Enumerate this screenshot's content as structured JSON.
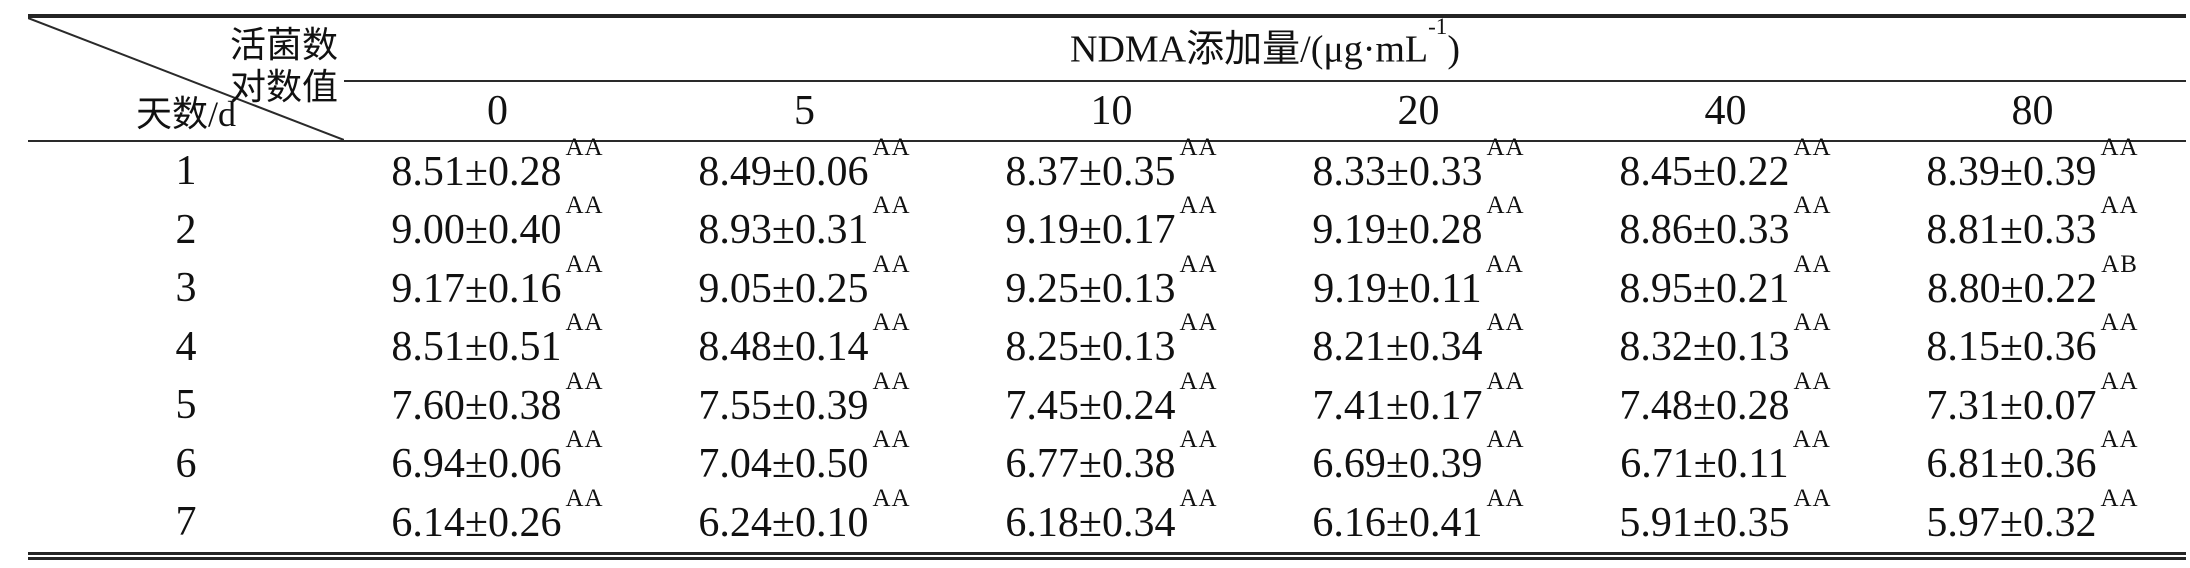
{
  "table": {
    "corner": {
      "top_line1": "活菌数",
      "top_line2": "对数值",
      "bottom_label": "天数/d"
    },
    "group_header": {
      "prefix": "NDMA添加量/(μg·mL",
      "sup": "-1",
      "suffix": ")"
    },
    "columns": [
      "0",
      "5",
      "10",
      "20",
      "40",
      "80"
    ],
    "rows": [
      {
        "day": "1",
        "cells": [
          {
            "value": "8.51±0.28",
            "sup": "AA"
          },
          {
            "value": "8.49±0.06",
            "sup": "AA"
          },
          {
            "value": "8.37±0.35",
            "sup": "AA"
          },
          {
            "value": "8.33±0.33",
            "sup": "AA"
          },
          {
            "value": "8.45±0.22",
            "sup": "AA"
          },
          {
            "value": "8.39±0.39",
            "sup": "AA"
          }
        ]
      },
      {
        "day": "2",
        "cells": [
          {
            "value": "9.00±0.40",
            "sup": "AA"
          },
          {
            "value": "8.93±0.31",
            "sup": "AA"
          },
          {
            "value": "9.19±0.17",
            "sup": "AA"
          },
          {
            "value": "9.19±0.28",
            "sup": "AA"
          },
          {
            "value": "8.86±0.33",
            "sup": "AA"
          },
          {
            "value": "8.81±0.33",
            "sup": "AA"
          }
        ]
      },
      {
        "day": "3",
        "cells": [
          {
            "value": "9.17±0.16",
            "sup": "AA"
          },
          {
            "value": "9.05±0.25",
            "sup": "AA"
          },
          {
            "value": "9.25±0.13",
            "sup": "AA"
          },
          {
            "value": "9.19±0.11",
            "sup": "AA"
          },
          {
            "value": "8.95±0.21",
            "sup": "AA"
          },
          {
            "value": "8.80±0.22",
            "sup": "AB"
          }
        ]
      },
      {
        "day": "4",
        "cells": [
          {
            "value": "8.51±0.51",
            "sup": "AA"
          },
          {
            "value": "8.48±0.14",
            "sup": "AA"
          },
          {
            "value": "8.25±0.13",
            "sup": "AA"
          },
          {
            "value": "8.21±0.34",
            "sup": "AA"
          },
          {
            "value": "8.32±0.13",
            "sup": "AA"
          },
          {
            "value": "8.15±0.36",
            "sup": "AA"
          }
        ]
      },
      {
        "day": "5",
        "cells": [
          {
            "value": "7.60±0.38",
            "sup": "AA"
          },
          {
            "value": "7.55±0.39",
            "sup": "AA"
          },
          {
            "value": "7.45±0.24",
            "sup": "AA"
          },
          {
            "value": "7.41±0.17",
            "sup": "AA"
          },
          {
            "value": "7.48±0.28",
            "sup": "AA"
          },
          {
            "value": "7.31±0.07",
            "sup": "AA"
          }
        ]
      },
      {
        "day": "6",
        "cells": [
          {
            "value": "6.94±0.06",
            "sup": "AA"
          },
          {
            "value": "7.04±0.50",
            "sup": "AA"
          },
          {
            "value": "6.77±0.38",
            "sup": "AA"
          },
          {
            "value": "6.69±0.39",
            "sup": "AA"
          },
          {
            "value": "6.71±0.11",
            "sup": "AA"
          },
          {
            "value": "6.81±0.36",
            "sup": "AA"
          }
        ]
      },
      {
        "day": "7",
        "cells": [
          {
            "value": "6.14±0.26",
            "sup": "AA"
          },
          {
            "value": "6.24±0.10",
            "sup": "AA"
          },
          {
            "value": "6.18±0.34",
            "sup": "AA"
          },
          {
            "value": "6.16±0.41",
            "sup": "AA"
          },
          {
            "value": "5.91±0.35",
            "sup": "AA"
          },
          {
            "value": "5.97±0.32",
            "sup": "AA"
          }
        ]
      }
    ]
  },
  "colors": {
    "text": "#111111",
    "rule": "#242424",
    "background": "#ffffff"
  }
}
